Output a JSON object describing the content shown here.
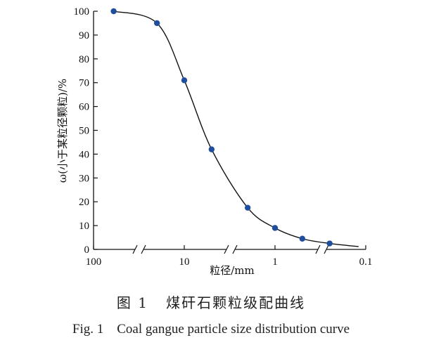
{
  "chart_data": {
    "type": "line",
    "title": "",
    "xlabel": "粒径/mm",
    "ylabel": "ω(小于某粒径颗粒)/%",
    "x_scale": "log",
    "x_reversed": true,
    "xlim": [
      100,
      0.1
    ],
    "ylim": [
      0,
      100
    ],
    "x_ticks": [
      100,
      10,
      1,
      0.1
    ],
    "x_tick_labels": [
      "100",
      "10",
      "1",
      "0.1"
    ],
    "y_ticks": [
      0,
      10,
      20,
      30,
      40,
      50,
      60,
      70,
      80,
      90,
      100
    ],
    "y_tick_labels": [
      "0",
      "10",
      "20",
      "30",
      "40",
      "50",
      "60",
      "70",
      "80",
      "90",
      "100"
    ],
    "axis_breaks": true,
    "grid": false,
    "series": [
      {
        "points": [
          {
            "x": 60,
            "y": 100
          },
          {
            "x": 20,
            "y": 95
          },
          {
            "x": 10,
            "y": 71
          },
          {
            "x": 5,
            "y": 42
          },
          {
            "x": 2,
            "y": 17.5
          },
          {
            "x": 1,
            "y": 9
          },
          {
            "x": 0.5,
            "y": 4.5
          },
          {
            "x": 0.25,
            "y": 2.5
          }
        ],
        "marker_color": "#1f4e9c",
        "line_color": "#111111"
      }
    ]
  },
  "caption": {
    "cn": "图 1   煤矸石颗粒级配曲线",
    "en": "Fig. 1    Coal gangue particle size distribution curve"
  }
}
